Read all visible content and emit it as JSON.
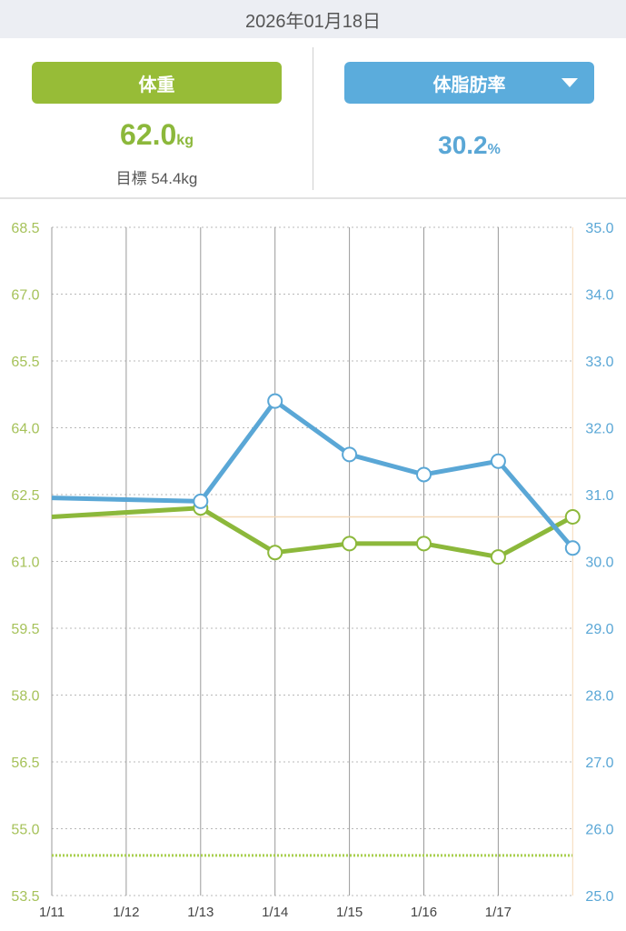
{
  "header": {
    "date": "2026年01月18日"
  },
  "weight_panel": {
    "label": "体重",
    "value": "62.0",
    "unit": "kg",
    "goal_text": "目標 54.4kg"
  },
  "fat_panel": {
    "label": "体脂肪率",
    "value": "30.2",
    "unit": "%"
  },
  "colors": {
    "weight": "#8cb83b",
    "fat": "#5aa7d6",
    "reference": "#f5d9b8"
  },
  "chart_data": {
    "type": "line",
    "categories": [
      "1/11",
      "1/12",
      "1/13",
      "1/14",
      "1/15",
      "1/16",
      "1/17",
      "1/18"
    ],
    "x_tick_labels": [
      "1/11",
      "1/12",
      "1/13",
      "1/14",
      "1/15",
      "1/16",
      "1/17"
    ],
    "left_axis": {
      "ylim": [
        53.5,
        68.5
      ],
      "ticks": [
        "68.5",
        "67.0",
        "65.5",
        "64.0",
        "62.5",
        "61.0",
        "59.5",
        "58.0",
        "56.5",
        "55.0",
        "53.5"
      ]
    },
    "right_axis": {
      "ylim": [
        25.0,
        35.0
      ],
      "ticks": [
        "35.0",
        "34.0",
        "33.0",
        "32.0",
        "31.0",
        "30.0",
        "29.0",
        "28.0",
        "27.0",
        "26.0",
        "25.0"
      ]
    },
    "series": [
      {
        "name": "体重",
        "axis": "left",
        "values": [
          62.0,
          null,
          62.2,
          61.2,
          61.4,
          61.4,
          61.1,
          62.0
        ],
        "markers_from": 2
      },
      {
        "name": "体脂肪率",
        "axis": "right",
        "values": [
          30.95,
          null,
          30.9,
          32.4,
          31.6,
          31.3,
          31.5,
          30.2
        ],
        "markers_from": 2
      }
    ],
    "goal_line": {
      "value": 54.4,
      "axis": "left"
    },
    "reference_line": {
      "value": 62.0,
      "axis": "left"
    }
  }
}
